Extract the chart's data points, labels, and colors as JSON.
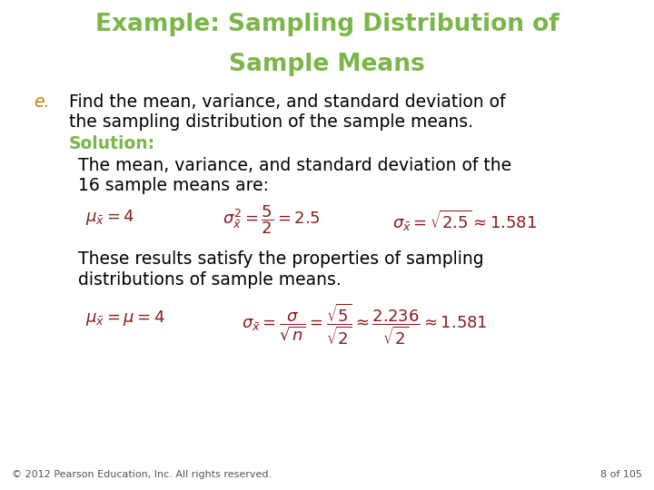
{
  "title_line1": "Example: Sampling Distribution of",
  "title_line2": "Sample Means",
  "title_color": "#7ab648",
  "title_fontsize": 19,
  "bg_color": "#ffffff",
  "body_color": "#000000",
  "solution_color": "#7ab648",
  "formula_color": "#8b1a1a",
  "footer_text": "© 2012 Pearson Education, Inc. All rights reserved.",
  "footer_right": "8 of 105",
  "e_label": "e.",
  "e_label_color": "#b8860b",
  "line1": "Find the mean, variance, and standard deviation of",
  "line2": "the sampling distribution of the sample means.",
  "solution_label": "Solution:",
  "body_text1": "The mean, variance, and standard deviation of the",
  "body_text2": "16 sample means are:",
  "body_text3": "These results satisfy the properties of sampling",
  "body_text4": "distributions of sample means.",
  "body_fontsize": 13.5,
  "formula_fontsize": 13.0,
  "footer_fontsize": 8.0
}
